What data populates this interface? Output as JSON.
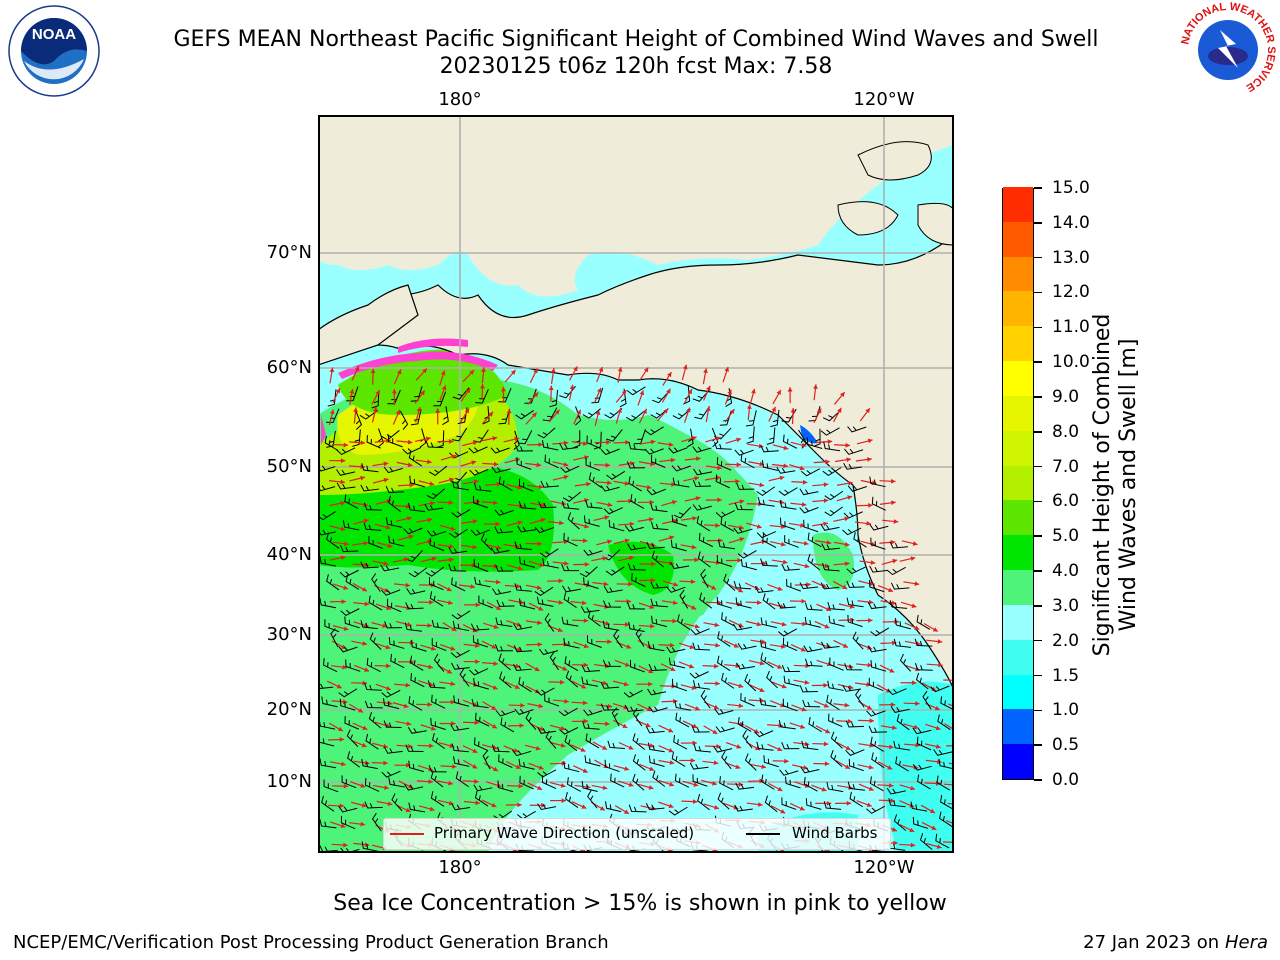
{
  "title": {
    "line1": "GEFS MEAN Northeast Pacific Significant Height of Combined Wind Waves and Swell",
    "line2": "20230125 t06z 120h fcst   Max: 7.58"
  },
  "axes": {
    "lon_labels": [
      "180°",
      "120°W"
    ],
    "lat_labels": [
      "70°N",
      "60°N",
      "50°N",
      "40°N",
      "30°N",
      "20°N",
      "10°N"
    ]
  },
  "colorbar": {
    "label_line1": "Significant Height of Combined",
    "label_line2": "Wind Waves and Swell [m]",
    "ticks": [
      "0.0",
      "0.5",
      "1.0",
      "1.5",
      "2.0",
      "3.0",
      "4.0",
      "5.0",
      "6.0",
      "7.0",
      "8.0",
      "9.0",
      "10.0",
      "11.0",
      "12.0",
      "13.0",
      "14.0",
      "15.0"
    ],
    "colors": [
      "#0000ff",
      "#0064ff",
      "#00ffff",
      "#40fff0",
      "#99ffff",
      "#4ef47a",
      "#00e600",
      "#5de600",
      "#b3f000",
      "#cff500",
      "#e6f500",
      "#ffff00",
      "#ffd200",
      "#ffb400",
      "#ff8c00",
      "#ff5a00",
      "#ff2d00"
    ]
  },
  "legend": {
    "wave_direction": "Primary Wave Direction (unscaled)",
    "wind_barbs": "Wind Barbs",
    "wave_color": "#e02020",
    "barb_color": "#000000"
  },
  "map_colors": {
    "land": "#efedd9",
    "grid": "#b0b0b0"
  },
  "footer": {
    "sea_ice_note": "Sea Ice Concentration > 15% is shown in pink to yellow",
    "credit": "NCEP/EMC/Verification Post Processing Product Generation Branch",
    "date": "27 Jan 2023 on",
    "host": "Hera"
  },
  "logos": {
    "noaa": "NOAA",
    "nws_ring": "NATIONAL WEATHER SERVICE"
  }
}
